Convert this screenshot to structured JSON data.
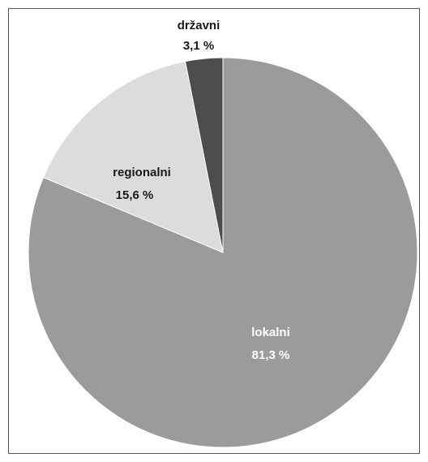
{
  "chart_data": {
    "type": "pie",
    "title": "",
    "slices": [
      {
        "label": "lokalni",
        "value": 81.3,
        "value_label": "81,3 %",
        "color": "#9b9b9b",
        "text_color": "#ffffff"
      },
      {
        "label": "regionalni",
        "value": 15.6,
        "value_label": "15,6 %",
        "color": "#dcdcdc",
        "text_color": "#1a1a1a"
      },
      {
        "label": "državni",
        "value": 3.1,
        "value_label": "3,1 %",
        "color": "#4d4d4d",
        "text_color": "#1a1a1a"
      }
    ],
    "start": "12 o'clock",
    "direction": "clockwise",
    "legend": "none"
  }
}
